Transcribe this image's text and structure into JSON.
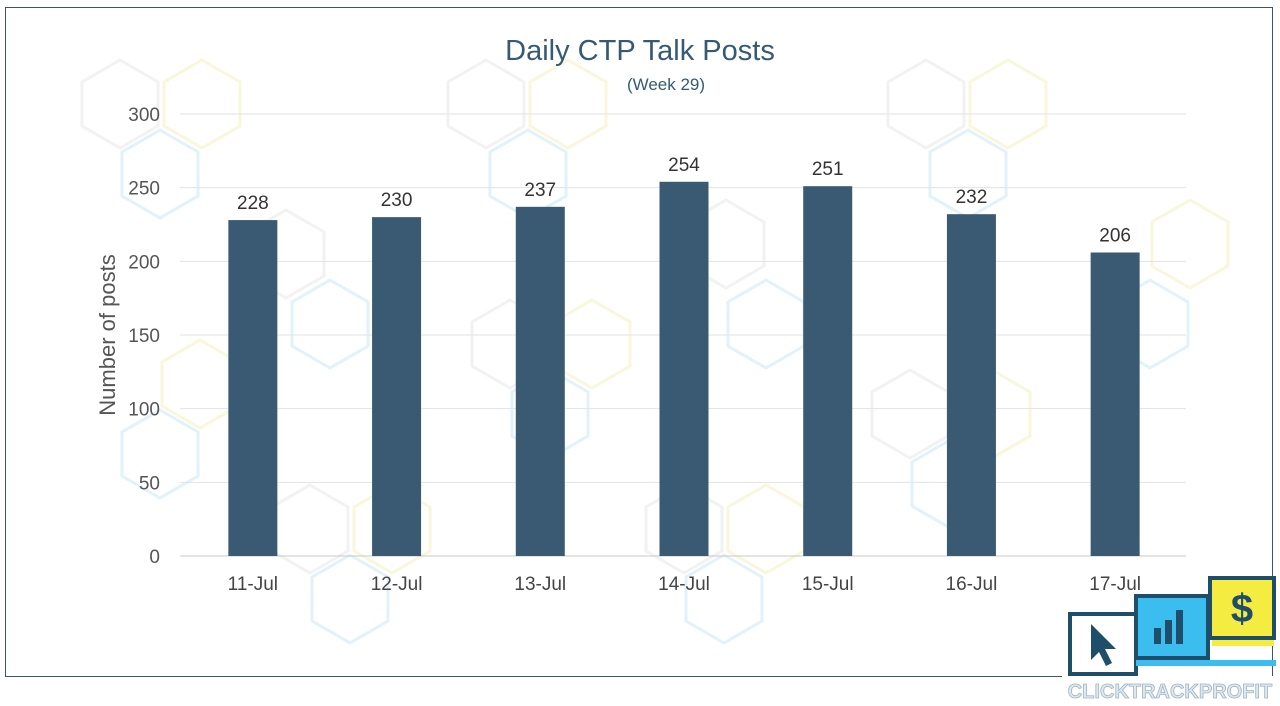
{
  "chart_data": {
    "type": "bar",
    "title": "Daily CTP Talk Posts",
    "subtitle": "(Week 29)",
    "xlabel": "",
    "ylabel": "Number of posts",
    "categories": [
      "11-Jul",
      "12-Jul",
      "13-Jul",
      "14-Jul",
      "15-Jul",
      "16-Jul",
      "17-Jul"
    ],
    "values": [
      228,
      230,
      237,
      254,
      251,
      232,
      206
    ],
    "ylim": [
      0,
      300
    ],
    "yticks": [
      0,
      50,
      100,
      150,
      200,
      250,
      300
    ],
    "grid": true,
    "legend": "none",
    "data_labels": true,
    "bar_color": "#3a5a73"
  },
  "logo": {
    "brand_text": "CLICKTRACKPROFIT",
    "icons": [
      "cursor-icon",
      "bar-chart-icon",
      "dollar-icon"
    ],
    "colors": {
      "blue": "#3bbdf0",
      "yellow": "#f5ec41",
      "navy": "#1f4e6b"
    }
  }
}
